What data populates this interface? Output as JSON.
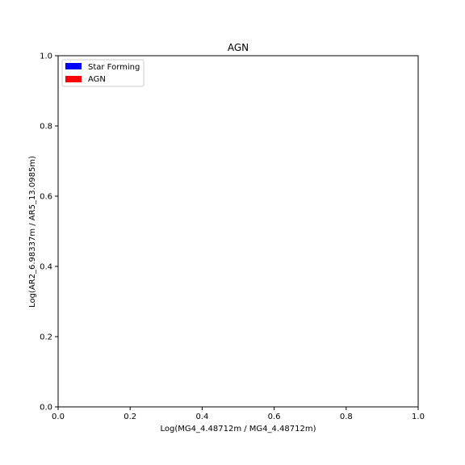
{
  "chart_data": {
    "type": "scatter",
    "title": "AGN",
    "xlabel": "Log(MG4_4.48712m / MG4_4.48712m)",
    "ylabel": "Log(AR2_6.98337m / AR5_13.0985m)",
    "xlim": [
      0.0,
      1.0
    ],
    "ylim": [
      0.0,
      1.0
    ],
    "xticks": [
      "0.0",
      "0.2",
      "0.4",
      "0.6",
      "0.8",
      "1.0"
    ],
    "yticks": [
      "0.0",
      "0.2",
      "0.4",
      "0.6",
      "0.8",
      "1.0"
    ],
    "grid": false,
    "legend_position": "upper-left",
    "series": [
      {
        "name": "Star Forming",
        "color": "#0000ff",
        "x": [],
        "y": []
      },
      {
        "name": "AGN",
        "color": "#ff0000",
        "x": [],
        "y": []
      }
    ]
  }
}
